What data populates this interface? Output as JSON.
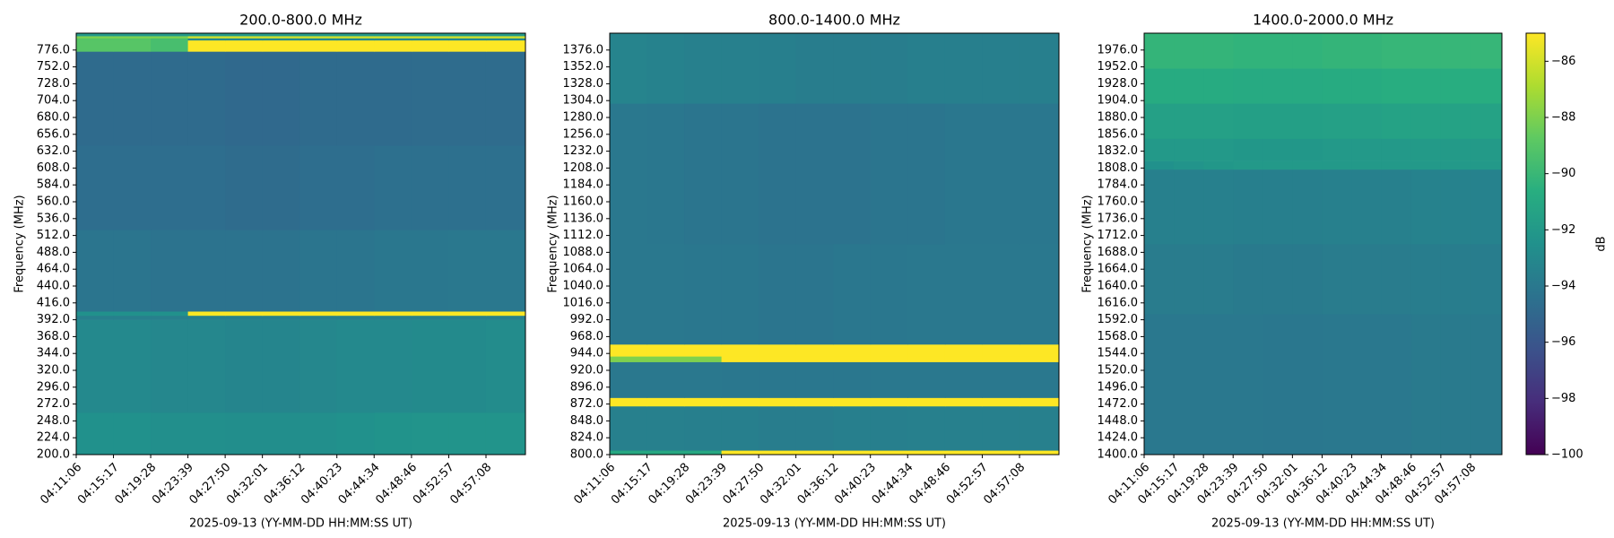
{
  "chart_data": [
    {
      "type": "heatmap",
      "title": "200.0-800.0 MHz",
      "xlabel": "2025-09-13 (YY-MM-DD HH:MM:SS UT)",
      "ylabel": "Frequency (MHz)",
      "xlim": [
        "04:11:06",
        "05:01:34"
      ],
      "xticks": [
        "04:11:06",
        "04:15:17",
        "04:19:28",
        "04:23:39",
        "04:27:50",
        "04:32:01",
        "04:36:12",
        "04:40:23",
        "04:44:34",
        "04:48:46",
        "04:52:57",
        "04:57:08"
      ],
      "ylim": [
        200,
        800
      ],
      "yticks": [
        {
          "value": 200,
          "label": "200.0"
        },
        {
          "value": 224,
          "label": "224.0"
        },
        {
          "value": 248,
          "label": "248.0"
        },
        {
          "value": 272,
          "label": "272.0"
        },
        {
          "value": 296,
          "label": "296.0"
        },
        {
          "value": 320,
          "label": "320.0"
        },
        {
          "value": 344,
          "label": "344.0"
        },
        {
          "value": 368,
          "label": "368.0"
        },
        {
          "value": 392,
          "label": "392.0"
        },
        {
          "value": 416,
          "label": "416.0"
        },
        {
          "value": 440,
          "label": "440.0"
        },
        {
          "value": 464,
          "label": "464.0"
        },
        {
          "value": 488,
          "label": "488.0"
        },
        {
          "value": 512,
          "label": "512.0"
        },
        {
          "value": 536,
          "label": "536.0"
        },
        {
          "value": 560,
          "label": "560.0"
        },
        {
          "value": 584,
          "label": "584.0"
        },
        {
          "value": 608,
          "label": "608.0"
        },
        {
          "value": 632,
          "label": "632.0"
        },
        {
          "value": 656,
          "label": "656.0"
        },
        {
          "value": 680,
          "label": "680.0"
        },
        {
          "value": 704,
          "label": "704.0"
        },
        {
          "value": 728,
          "label": "728.0"
        },
        {
          "value": 752,
          "label": "752.0"
        },
        {
          "value": 776,
          "label": "776.0"
        }
      ],
      "x_edges": [
        "04:11:06",
        "04:15:17",
        "04:19:28",
        "04:23:39",
        "04:27:50",
        "04:32:01",
        "04:36:12",
        "04:40:23",
        "04:44:34",
        "04:48:46",
        "04:52:57",
        "04:57:08",
        "05:01:34"
      ],
      "y_edges": [
        200,
        260,
        392,
        398,
        404,
        520,
        640,
        774,
        790,
        793,
        796,
        800
      ],
      "z": [
        [
          -92.5,
          -92.5,
          -92.6,
          -92.6,
          -92.7,
          -92.7,
          -92.6,
          -92.5,
          -92.4,
          -92.3,
          -92.3,
          -92.3
        ],
        [
          -93,
          -93,
          -93.1,
          -93.1,
          -93.2,
          -93.2,
          -93.1,
          -93,
          -93,
          -92.9,
          -92.9,
          -92.8
        ],
        [
          -93.5,
          -93.5,
          -93.5,
          -93.5,
          -93.5,
          -93.5,
          -93.5,
          -93.5,
          -93.5,
          -93.5,
          -93.5,
          -93.5
        ],
        [
          -92.5,
          -92.5,
          -92.5,
          -85,
          -85,
          -85,
          -85,
          -85,
          -85,
          -85,
          -85,
          -85
        ],
        [
          -94.2,
          -94.2,
          -94.3,
          -94.3,
          -94.3,
          -94.3,
          -94.2,
          -94.2,
          -94.1,
          -94.1,
          -94,
          -94
        ],
        [
          -94.6,
          -94.6,
          -94.6,
          -94.6,
          -94.7,
          -94.7,
          -94.6,
          -94.6,
          -94.5,
          -94.5,
          -94.5,
          -94.5
        ],
        [
          -94.8,
          -94.8,
          -94.8,
          -94.8,
          -94.9,
          -94.9,
          -94.8,
          -94.8,
          -94.8,
          -94.7,
          -94.7,
          -94.7
        ],
        [
          -89,
          -89,
          -89.5,
          -85,
          -85,
          -85,
          -85,
          -85,
          -85,
          -85,
          -85,
          -85
        ],
        [
          -89,
          -89,
          -89.5,
          -93,
          -93,
          -93,
          -93,
          -93,
          -93,
          -93,
          -93,
          -93
        ],
        [
          -88,
          -88,
          -88,
          -86,
          -86,
          -86,
          -86,
          -86,
          -86,
          -86,
          -86,
          -86
        ],
        [
          -92,
          -92,
          -92,
          -92,
          -92,
          -92,
          -92,
          -92,
          -92,
          -92,
          -92,
          -92
        ]
      ]
    },
    {
      "type": "heatmap",
      "title": "800.0-1400.0 MHz",
      "xlabel": "2025-09-13 (YY-MM-DD HH:MM:SS UT)",
      "ylabel": "Frequency (MHz)",
      "xlim": [
        "04:11:06",
        "05:01:34"
      ],
      "xticks": [
        "04:11:06",
        "04:15:17",
        "04:19:28",
        "04:23:39",
        "04:27:50",
        "04:32:01",
        "04:36:12",
        "04:40:23",
        "04:44:34",
        "04:48:46",
        "04:52:57",
        "04:57:08"
      ],
      "ylim": [
        800,
        1400
      ],
      "yticks": [
        {
          "value": 800,
          "label": "800.0"
        },
        {
          "value": 824,
          "label": "824.0"
        },
        {
          "value": 848,
          "label": "848.0"
        },
        {
          "value": 872,
          "label": "872.0"
        },
        {
          "value": 896,
          "label": "896.0"
        },
        {
          "value": 920,
          "label": "920.0"
        },
        {
          "value": 944,
          "label": "944.0"
        },
        {
          "value": 968,
          "label": "968.0"
        },
        {
          "value": 992,
          "label": "992.0"
        },
        {
          "value": 1016,
          "label": "1016.0"
        },
        {
          "value": 1040,
          "label": "1040.0"
        },
        {
          "value": 1064,
          "label": "1064.0"
        },
        {
          "value": 1088,
          "label": "1088.0"
        },
        {
          "value": 1112,
          "label": "1112.0"
        },
        {
          "value": 1136,
          "label": "1136.0"
        },
        {
          "value": 1160,
          "label": "1160.0"
        },
        {
          "value": 1184,
          "label": "1184.0"
        },
        {
          "value": 1208,
          "label": "1208.0"
        },
        {
          "value": 1232,
          "label": "1232.0"
        },
        {
          "value": 1256,
          "label": "1256.0"
        },
        {
          "value": 1280,
          "label": "1280.0"
        },
        {
          "value": 1304,
          "label": "1304.0"
        },
        {
          "value": 1328,
          "label": "1328.0"
        },
        {
          "value": 1352,
          "label": "1352.0"
        },
        {
          "value": 1376,
          "label": "1376.0"
        }
      ],
      "x_edges": [
        "04:11:06",
        "04:15:17",
        "04:19:28",
        "04:23:39",
        "04:27:50",
        "04:32:01",
        "04:36:12",
        "04:40:23",
        "04:44:34",
        "04:48:46",
        "04:52:57",
        "04:57:08",
        "05:01:34"
      ],
      "y_edges": [
        800,
        806,
        869,
        881,
        932,
        940,
        957,
        1100,
        1300,
        1400
      ],
      "z": [
        [
          -91,
          -91,
          -91,
          -85,
          -85,
          -85,
          -85,
          -85,
          -85,
          -85,
          -85,
          -85
        ],
        [
          -93.5,
          -93.5,
          -93.6,
          -93.6,
          -93.7,
          -93.7,
          -93.6,
          -93.6,
          -93.5,
          -93.5,
          -93.5,
          -93.5
        ],
        [
          -85,
          -85,
          -85,
          -85,
          -85,
          -85,
          -85,
          -85,
          -85,
          -85,
          -85,
          -85
        ],
        [
          -94,
          -94,
          -94,
          -94.1,
          -94.1,
          -94.1,
          -94.1,
          -94,
          -94,
          -94,
          -94,
          -94
        ],
        [
          -88,
          -88,
          -88,
          -85,
          -85,
          -85,
          -85,
          -85,
          -85,
          -85,
          -85,
          -85
        ],
        [
          -85,
          -85,
          -85,
          -85,
          -85,
          -85,
          -85,
          -85,
          -85,
          -85,
          -85,
          -85
        ],
        [
          -94,
          -94,
          -94.1,
          -94.1,
          -94.2,
          -94.2,
          -94.1,
          -94.1,
          -94,
          -94,
          -94,
          -94
        ],
        [
          -94,
          -94.1,
          -94.2,
          -94.2,
          -94.3,
          -94.3,
          -94.3,
          -94.2,
          -94.2,
          -94.1,
          -94.1,
          -94.1
        ],
        [
          -93.3,
          -93.4,
          -93.5,
          -93.5,
          -93.6,
          -93.7,
          -93.7,
          -93.7,
          -93.6,
          -93.6,
          -93.6,
          -93.6
        ]
      ]
    },
    {
      "type": "heatmap",
      "title": "1400.0-2000.0 MHz",
      "xlabel": "2025-09-13 (YY-MM-DD HH:MM:SS UT)",
      "ylabel": "Frequency (MHz)",
      "xlim": [
        "04:11:06",
        "05:01:34"
      ],
      "xticks": [
        "04:11:06",
        "04:15:17",
        "04:19:28",
        "04:23:39",
        "04:27:50",
        "04:32:01",
        "04:36:12",
        "04:40:23",
        "04:44:34",
        "04:48:46",
        "04:52:57",
        "04:57:08"
      ],
      "ylim": [
        1400,
        2000
      ],
      "yticks": [
        {
          "value": 1400,
          "label": "1400.0"
        },
        {
          "value": 1424,
          "label": "1424.0"
        },
        {
          "value": 1448,
          "label": "1448.0"
        },
        {
          "value": 1472,
          "label": "1472.0"
        },
        {
          "value": 1496,
          "label": "1496.0"
        },
        {
          "value": 1520,
          "label": "1520.0"
        },
        {
          "value": 1544,
          "label": "1544.0"
        },
        {
          "value": 1568,
          "label": "1568.0"
        },
        {
          "value": 1592,
          "label": "1592.0"
        },
        {
          "value": 1616,
          "label": "1616.0"
        },
        {
          "value": 1640,
          "label": "1640.0"
        },
        {
          "value": 1664,
          "label": "1664.0"
        },
        {
          "value": 1688,
          "label": "1688.0"
        },
        {
          "value": 1712,
          "label": "1712.0"
        },
        {
          "value": 1736,
          "label": "1736.0"
        },
        {
          "value": 1760,
          "label": "1760.0"
        },
        {
          "value": 1784,
          "label": "1784.0"
        },
        {
          "value": 1808,
          "label": "1808.0"
        },
        {
          "value": 1832,
          "label": "1832.0"
        },
        {
          "value": 1856,
          "label": "1856.0"
        },
        {
          "value": 1880,
          "label": "1880.0"
        },
        {
          "value": 1904,
          "label": "1904.0"
        },
        {
          "value": 1928,
          "label": "1928.0"
        },
        {
          "value": 1952,
          "label": "1952.0"
        },
        {
          "value": 1976,
          "label": "1976.0"
        }
      ],
      "x_edges": [
        "04:11:06",
        "04:15:17",
        "04:19:28",
        "04:23:39",
        "04:27:50",
        "04:32:01",
        "04:36:12",
        "04:40:23",
        "04:44:34",
        "04:48:46",
        "04:52:57",
        "04:57:08",
        "05:01:34"
      ],
      "y_edges": [
        1400,
        1600,
        1700,
        1806,
        1818,
        1850,
        1900,
        1950,
        2000
      ],
      "z": [
        [
          -94,
          -94,
          -94,
          -94,
          -94.1,
          -94.1,
          -94,
          -94,
          -94,
          -93.9,
          -93.9,
          -93.9
        ],
        [
          -93.8,
          -93.8,
          -93.8,
          -93.9,
          -93.9,
          -93.9,
          -93.8,
          -93.8,
          -93.8,
          -93.7,
          -93.7,
          -93.7
        ],
        [
          -93.5,
          -93.5,
          -93.5,
          -93.6,
          -93.6,
          -93.6,
          -93.5,
          -93.5,
          -93.5,
          -93.4,
          -93.4,
          -93.4
        ],
        [
          -92.5,
          -92.3,
          -92.1,
          -92,
          -92,
          -92,
          -92,
          -92,
          -92,
          -92,
          -92,
          -92
        ],
        [
          -92,
          -92,
          -92,
          -92.1,
          -92.1,
          -92.1,
          -92,
          -92,
          -92,
          -91.9,
          -91.9,
          -91.9
        ],
        [
          -91.5,
          -91.5,
          -91.5,
          -91.6,
          -91.6,
          -91.6,
          -91.5,
          -91.5,
          -91.4,
          -91.4,
          -91.4,
          -91.4
        ],
        [
          -90.8,
          -90.8,
          -90.8,
          -90.9,
          -90.9,
          -90.9,
          -90.8,
          -90.8,
          -90.7,
          -90.7,
          -90.7,
          -90.7
        ],
        [
          -90.2,
          -90.2,
          -90.2,
          -90.3,
          -90.3,
          -90.3,
          -90.2,
          -90.2,
          -90.1,
          -90.1,
          -90.1,
          -90.1
        ]
      ]
    }
  ],
  "colorbar": {
    "label": "dB",
    "colormap": "viridis",
    "lim": [
      -100,
      -85
    ],
    "ticks": [
      {
        "value": -86,
        "label": "−86"
      },
      {
        "value": -88,
        "label": "−88"
      },
      {
        "value": -90,
        "label": "−90"
      },
      {
        "value": -92,
        "label": "−92"
      },
      {
        "value": -94,
        "label": "−94"
      },
      {
        "value": -96,
        "label": "−96"
      },
      {
        "value": -98,
        "label": "−98"
      },
      {
        "value": -100,
        "label": "−100"
      }
    ]
  }
}
